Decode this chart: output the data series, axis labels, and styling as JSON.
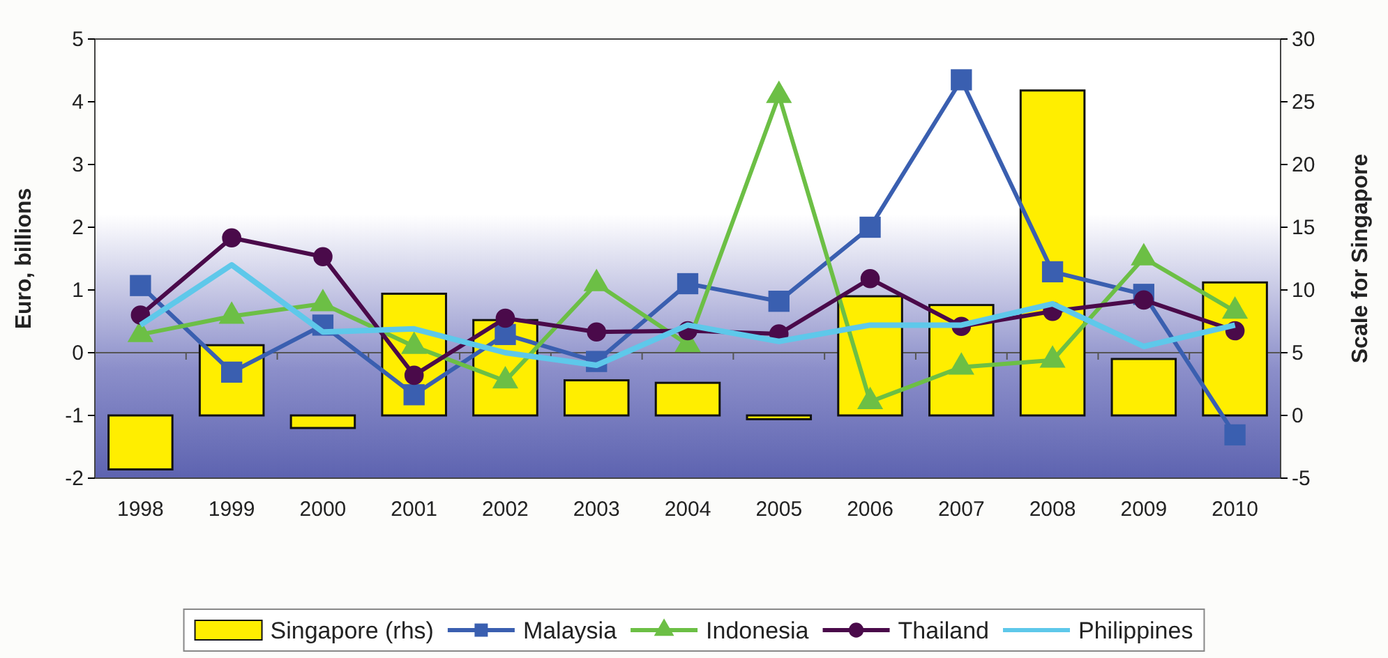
{
  "chart_data": {
    "type": "line",
    "ylabel": "Euro, billions",
    "y2label": "Scale for Singapore",
    "categories": [
      "1998",
      "1999",
      "2000",
      "2001",
      "2002",
      "2003",
      "2004",
      "2005",
      "2006",
      "2007",
      "2008",
      "2009",
      "2010"
    ],
    "ylim": [
      -2,
      5
    ],
    "yticks": [
      -2,
      -1,
      0,
      1,
      2,
      3,
      4,
      5
    ],
    "y2lim": [
      -5,
      30
    ],
    "y2ticks": [
      -5,
      0,
      5,
      10,
      15,
      20,
      25,
      30
    ],
    "legend": "bottom",
    "ref_lines": [
      {
        "axis": "y",
        "value": 0,
        "color": "#555555"
      }
    ],
    "series": [
      {
        "name": "Singapore (rhs)",
        "type": "bar",
        "axis": "y2",
        "color": "#ffee00",
        "values": [
          -4.3,
          5.6,
          -1.0,
          9.7,
          7.6,
          2.8,
          2.6,
          -0.3,
          9.5,
          8.8,
          25.9,
          4.5,
          10.6
        ]
      },
      {
        "name": "Malaysia",
        "marker": "square",
        "color": "#3a5fb0",
        "values": [
          1.07,
          -0.31,
          0.44,
          -0.67,
          0.29,
          -0.14,
          1.1,
          0.82,
          2.0,
          4.35,
          1.29,
          0.93,
          -1.31
        ]
      },
      {
        "name": "Indonesia",
        "marker": "triangle",
        "color": "#6cbf45",
        "values": [
          0.29,
          0.58,
          0.78,
          0.1,
          -0.45,
          1.1,
          0.13,
          4.1,
          -0.78,
          -0.23,
          -0.12,
          1.51,
          0.66
        ]
      },
      {
        "name": "Thailand",
        "marker": "circle",
        "color": "#4a0a4a",
        "values": [
          0.6,
          1.83,
          1.53,
          -0.36,
          0.55,
          0.33,
          0.35,
          0.3,
          1.18,
          0.42,
          0.66,
          0.84,
          0.35
        ]
      },
      {
        "name": "Philippines",
        "marker": "none",
        "color": "#5ec8ea",
        "values": [
          0.44,
          1.4,
          0.33,
          0.38,
          0.0,
          -0.2,
          0.44,
          0.18,
          0.44,
          0.44,
          0.78,
          0.1,
          0.44
        ]
      }
    ]
  }
}
